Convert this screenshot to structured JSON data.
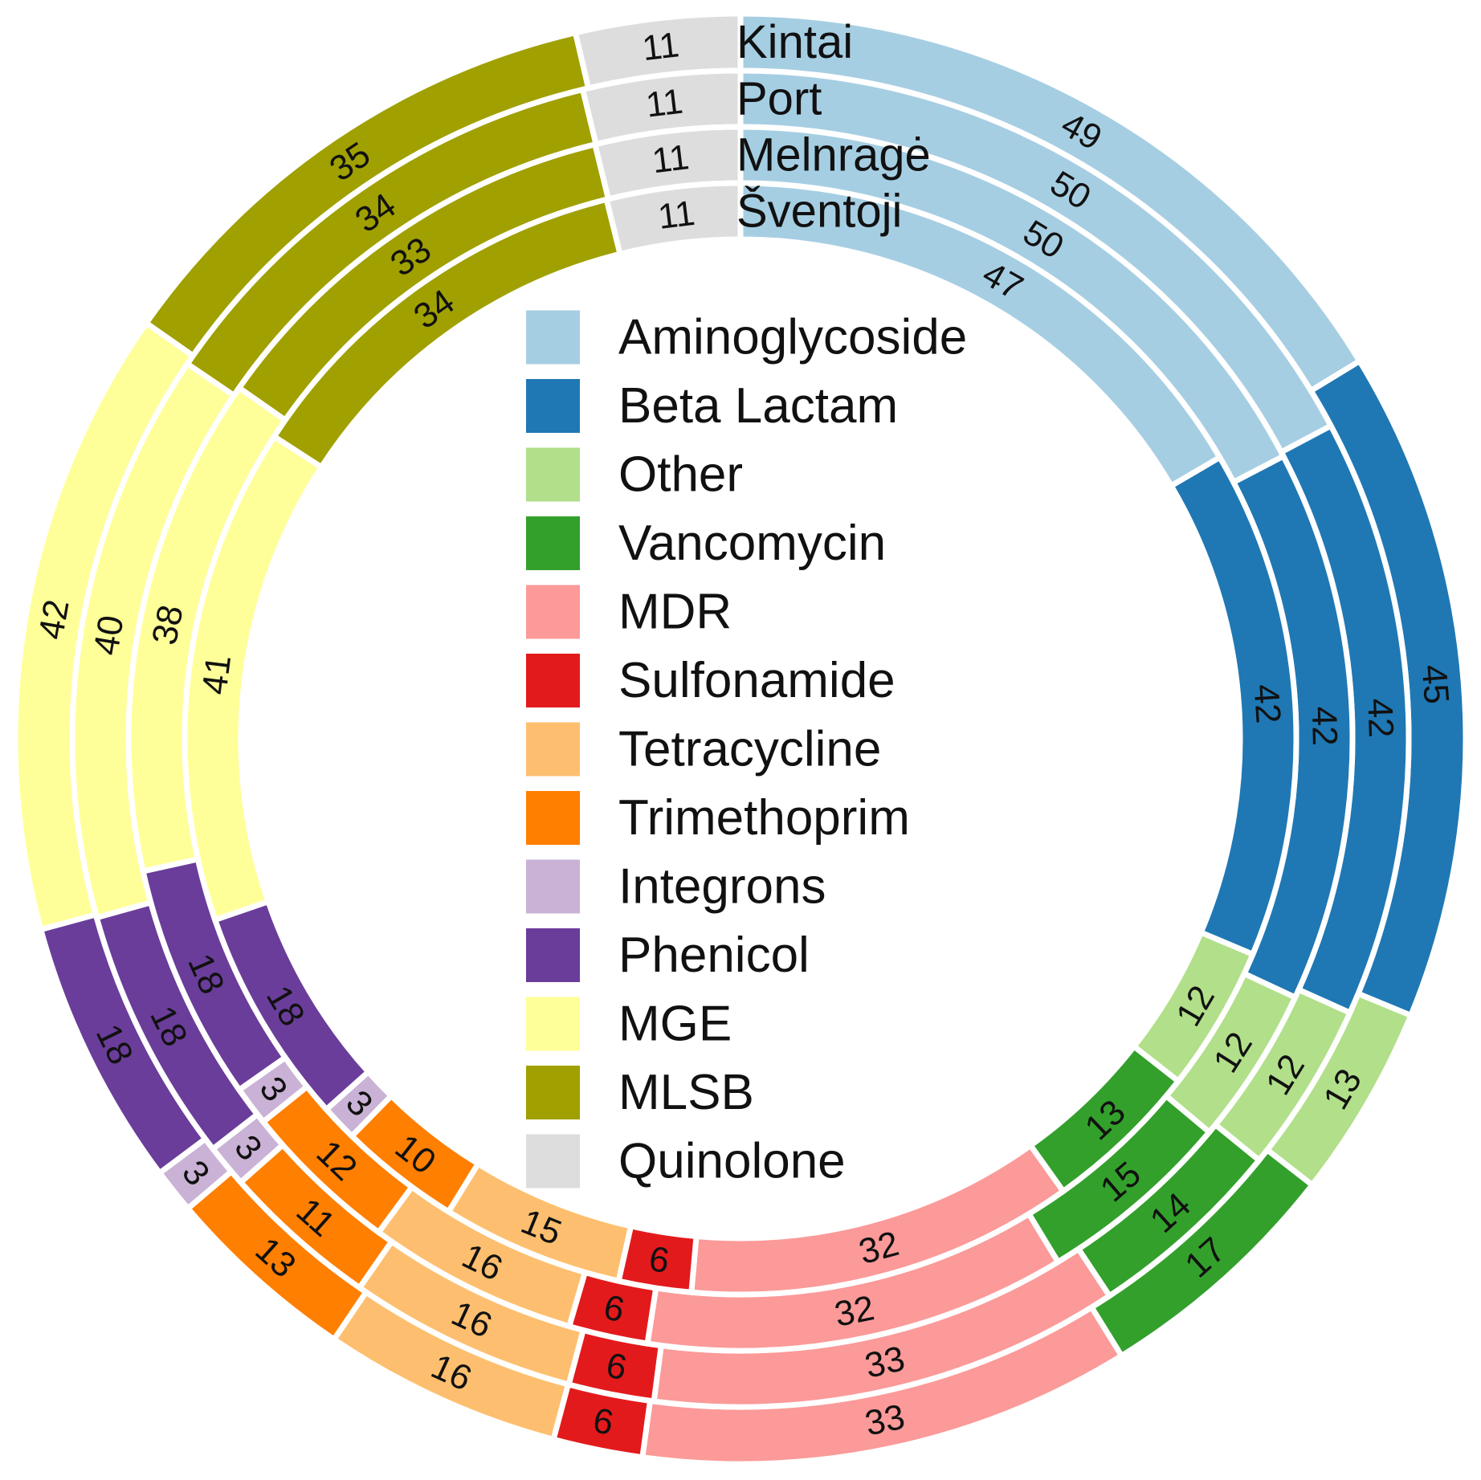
{
  "chart_data": {
    "type": "multi-ring donut",
    "rings": [
      "Kintai",
      "Port",
      "Melnragė",
      "Šventoji"
    ],
    "categories": [
      "Aminoglycoside",
      "Beta Lactam",
      "Other",
      "Vancomycin",
      "MDR",
      "Sulfonamide",
      "Tetracycline",
      "Trimethoprim",
      "Integrons",
      "Phenicol",
      "MGE",
      "MLSB",
      "Quinolone"
    ],
    "colors": {
      "Aminoglycoside": "#A6CEE3",
      "Beta Lactam": "#1F78B4",
      "Other": "#B2DF8A",
      "Vancomycin": "#33A02C",
      "MDR": "#FB9A99",
      "Sulfonamide": "#E31A1C",
      "Tetracycline": "#FDBF6F",
      "Trimethoprim": "#FF7F00",
      "Integrons": "#CAB2D6",
      "Phenicol": "#6A3D9A",
      "MGE": "#FFFF99",
      "MLSB": "#A0A000",
      "Quinolone": "#DDDDDD"
    },
    "series": [
      {
        "name": "Kintai",
        "values": [
          49,
          45,
          13,
          17,
          33,
          6,
          16,
          13,
          3,
          18,
          42,
          35,
          11
        ]
      },
      {
        "name": "Port",
        "values": [
          50,
          42,
          12,
          14,
          33,
          6,
          16,
          11,
          3,
          18,
          40,
          34,
          11
        ]
      },
      {
        "name": "Melnragė",
        "values": [
          50,
          42,
          12,
          15,
          32,
          6,
          16,
          12,
          3,
          18,
          38,
          33,
          11
        ]
      },
      {
        "name": "Šventoji",
        "values": [
          47,
          42,
          12,
          13,
          32,
          6,
          15,
          10,
          3,
          18,
          41,
          34,
          11
        ]
      }
    ],
    "legend": {
      "placement": "center",
      "entries": [
        "Aminoglycoside",
        "Beta Lactam",
        "Other",
        "Vancomycin",
        "MDR",
        "Sulfonamide",
        "Tetracycline",
        "Trimethoprim",
        "Integrons",
        "Phenicol",
        "MGE",
        "MLSB",
        "Quinolone"
      ]
    }
  }
}
